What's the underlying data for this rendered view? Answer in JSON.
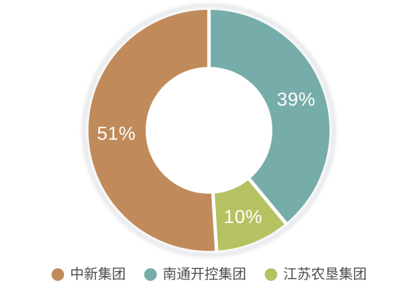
{
  "page": {
    "background_color": "#ffffff"
  },
  "chart_data": {
    "type": "pie",
    "donut": true,
    "title": "",
    "unit": "%",
    "series": [
      {
        "name": "中新集团",
        "value": 51,
        "label": "51%",
        "color": "#c18a5a"
      },
      {
        "name": "南通开控集团",
        "value": 39,
        "label": "39%",
        "color": "#76aca9"
      },
      {
        "name": "江苏农垦集团",
        "value": 10,
        "label": "10%",
        "color": "#b6c161"
      }
    ],
    "draw_order_clockwise_from_top": [
      1,
      2,
      0
    ],
    "label_color": "#ffffff",
    "separator_color": "#ffffff",
    "halo_color": "#e8e9eb",
    "legend_position": "bottom",
    "legend_text_color": "#4d4d4d",
    "legend": [
      {
        "label": "中新集团"
      },
      {
        "label": "南通开控集团"
      },
      {
        "label": "江苏农垦集团"
      }
    ]
  }
}
